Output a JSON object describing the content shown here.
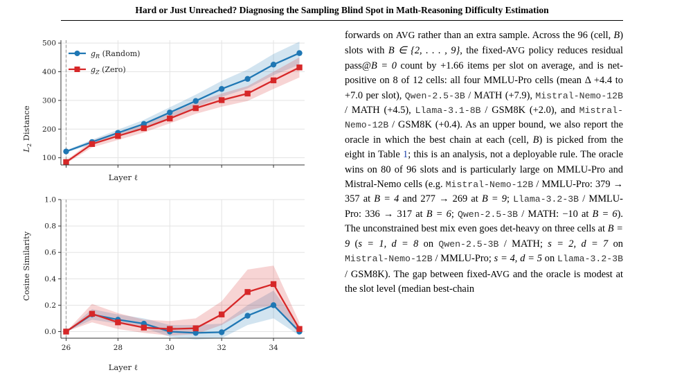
{
  "header": {
    "title": "Hard or Just Unreached? Diagnosing the Sampling Blind Spot in Math-Reasoning Difficulty Estimation"
  },
  "chart_data": [
    {
      "type": "line",
      "xlabel": "Layer ℓ",
      "ylabel": "L2 Distance",
      "x": [
        26,
        27,
        28,
        29,
        30,
        31,
        32,
        33,
        34,
        35
      ],
      "xlim": [
        25.8,
        35.2
      ],
      "ylim": [
        75,
        510
      ],
      "yticks": [
        100,
        200,
        300,
        400,
        500
      ],
      "legend_position": "upper-left",
      "grid": true,
      "series": [
        {
          "name": "g_R (Random)",
          "color": "#1f77b4",
          "marker": "circle",
          "values": [
            122,
            155,
            187,
            218,
            258,
            298,
            340,
            375,
            425,
            465
          ],
          "band_low": [
            118,
            147,
            176,
            204,
            240,
            276,
            312,
            342,
            388,
            425
          ],
          "band_high": [
            126,
            163,
            198,
            232,
            276,
            320,
            368,
            408,
            462,
            505
          ]
        },
        {
          "name": "g_Z (Zero)",
          "color": "#d62728",
          "marker": "square",
          "values": [
            85,
            148,
            176,
            203,
            237,
            273,
            301,
            324,
            370,
            415
          ],
          "band_low": [
            80,
            136,
            162,
            188,
            220,
            253,
            278,
            298,
            340,
            380
          ],
          "band_high": [
            90,
            160,
            190,
            218,
            254,
            293,
            324,
            350,
            400,
            450
          ]
        }
      ],
      "vline_x": 26
    },
    {
      "type": "line",
      "xlabel": "Layer ℓ",
      "ylabel": "Cosine Similarity",
      "x": [
        26,
        27,
        28,
        29,
        30,
        31,
        32,
        33,
        34,
        35
      ],
      "xlim": [
        25.8,
        35.2
      ],
      "ylim": [
        -0.05,
        1.0
      ],
      "xticks": [
        26,
        28,
        30,
        32,
        34
      ],
      "yticks": [
        0.0,
        0.2,
        0.4,
        0.6,
        0.8,
        1.0
      ],
      "grid": true,
      "series": [
        {
          "name": "g_R (Random)",
          "color": "#1f77b4",
          "marker": "circle",
          "values": [
            0.0,
            0.13,
            0.09,
            0.06,
            0.0,
            -0.01,
            -0.005,
            0.12,
            0.2,
            0.0
          ],
          "band_low": [
            0.0,
            0.09,
            0.06,
            0.03,
            -0.04,
            -0.06,
            -0.05,
            0.05,
            0.1,
            -0.03
          ],
          "band_high": [
            0.0,
            0.17,
            0.13,
            0.1,
            0.05,
            0.05,
            0.06,
            0.2,
            0.31,
            0.04
          ]
        },
        {
          "name": "g_Z (Zero)",
          "color": "#d62728",
          "marker": "square",
          "values": [
            0.0,
            0.135,
            0.07,
            0.03,
            0.02,
            0.025,
            0.13,
            0.3,
            0.36,
            0.02
          ],
          "band_low": [
            0.0,
            0.07,
            0.02,
            -0.01,
            -0.03,
            -0.02,
            0.05,
            0.16,
            0.2,
            -0.02
          ],
          "band_high": [
            0.0,
            0.21,
            0.14,
            0.09,
            0.08,
            0.1,
            0.23,
            0.47,
            0.5,
            0.07
          ]
        }
      ],
      "vline_x": 26
    }
  ],
  "figure": {
    "top": {
      "ylabel_main": "L",
      "ylabel_sub": "2",
      "ylabel_rest": " Distance",
      "xlabel": "Layer ℓ",
      "legend": [
        {
          "main": "g",
          "sub": "R",
          "rest": " (Random)"
        },
        {
          "main": "g",
          "sub": "Z",
          "rest": " (Zero)"
        }
      ]
    },
    "bottom": {
      "ylabel": "Cosine Similarity",
      "xlabel": "Layer ℓ"
    }
  },
  "body_text": {
    "s01": "forwards on ",
    "s02": "AVG",
    "s03": " rather than an extra sample. Across the 96 (cell, ",
    "s04": "B",
    "s05": ") slots with ",
    "s06": "B ∈ {2, . . . , 9}",
    "s07": ", the fixed-",
    "s08": "AVG",
    "s09": " policy reduces residual pass@",
    "s10": "B = 0",
    "s11": " count by +1.66 items per slot on average, and is net-positive on 8 of 12 cells: all four MMLU-Pro cells (mean Δ +4.4 to +7.0 per slot), ",
    "s12": "Qwen-2.5-3B",
    "s13": " / MATH (+7.9), ",
    "s14": "Mistral-Nemo-12B",
    "s15": " / MATH (+4.5), ",
    "s16": "Llama-3.1-8B",
    "s17": " / GSM8K (+2.0), and ",
    "s18": "Mistral-Nemo-12B",
    "s19": " / GSM8K (+0.4). As an upper bound, we also report the oracle in which the best chain at each (cell, ",
    "s20": "B",
    "s21": ") is picked from the eight in Table ",
    "s22": "1",
    "s23": "; this is an analysis, not a deployable rule. The oracle wins on 80 of 96 slots and is particularly large on MMLU-Pro and Mistral-Nemo cells (e.g. ",
    "s24": "Mistral-Nemo-12B",
    "s25": " / MMLU-Pro: 379 → 357 at ",
    "s26": "B = 4",
    "s27": " and 277 → 269 at ",
    "s28": "B = 9",
    "s29": "; ",
    "s30": "Llama-3.2-3B",
    "s31": " / MMLU-Pro: 336 → 317 at ",
    "s32": "B = 6",
    "s33": "; ",
    "s34": "Qwen-2.5-3B",
    "s35": " / MATH: −10 at ",
    "s36": "B = 6",
    "s37": "). The unconstrained best mix even goes det-heavy on three cells at ",
    "s38": "B = 9",
    "s39": " (",
    "s40": "s = 1, d = 8",
    "s41": " on ",
    "s42": "Qwen-2.5-3B",
    "s43": " / MATH; ",
    "s44": "s = 2, d = 7",
    "s45": " on ",
    "s46": "Mistral-Nemo-12B",
    "s47": " / MMLU-Pro; ",
    "s48": "s = 4, d = 5",
    "s49": " on ",
    "s50": "Llama-3.2-3B",
    "s51": " / GSM8K). The gap between fixed-",
    "s52": "AVG",
    "s53": " and the oracle is modest at the slot level (median best-chain"
  }
}
